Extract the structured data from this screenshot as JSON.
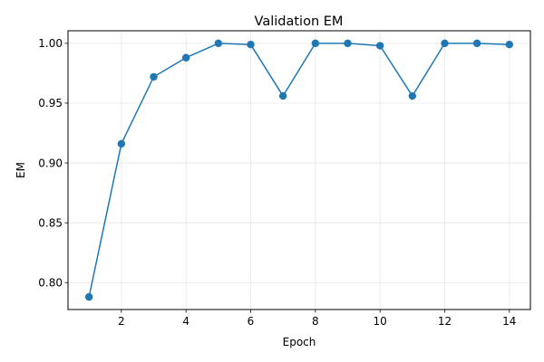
{
  "chart_data": {
    "type": "line",
    "title": "Validation EM",
    "xlabel": "Epoch",
    "ylabel": "EM",
    "x": [
      1,
      2,
      3,
      4,
      5,
      6,
      7,
      8,
      9,
      10,
      11,
      12,
      13,
      14
    ],
    "series": [
      {
        "values": [
          0.788,
          0.916,
          0.972,
          0.988,
          1.0,
          0.999,
          0.956,
          1.0,
          1.0,
          0.998,
          0.956,
          1.0,
          1.0,
          0.999
        ],
        "color": "#1f77b4",
        "marker": "circle"
      }
    ],
    "xlim": [
      0.35,
      14.65
    ],
    "ylim": [
      0.7775,
      1.0105
    ],
    "xticks": [
      2,
      4,
      6,
      8,
      10,
      12,
      14
    ],
    "xtick_labels": [
      "2",
      "4",
      "6",
      "8",
      "10",
      "12",
      "14"
    ],
    "yticks": [
      0.8,
      0.85,
      0.9,
      0.95,
      1.0
    ],
    "ytick_labels": [
      "0.80",
      "0.85",
      "0.90",
      "0.95",
      "1.00"
    ],
    "grid": true,
    "legend": false
  }
}
